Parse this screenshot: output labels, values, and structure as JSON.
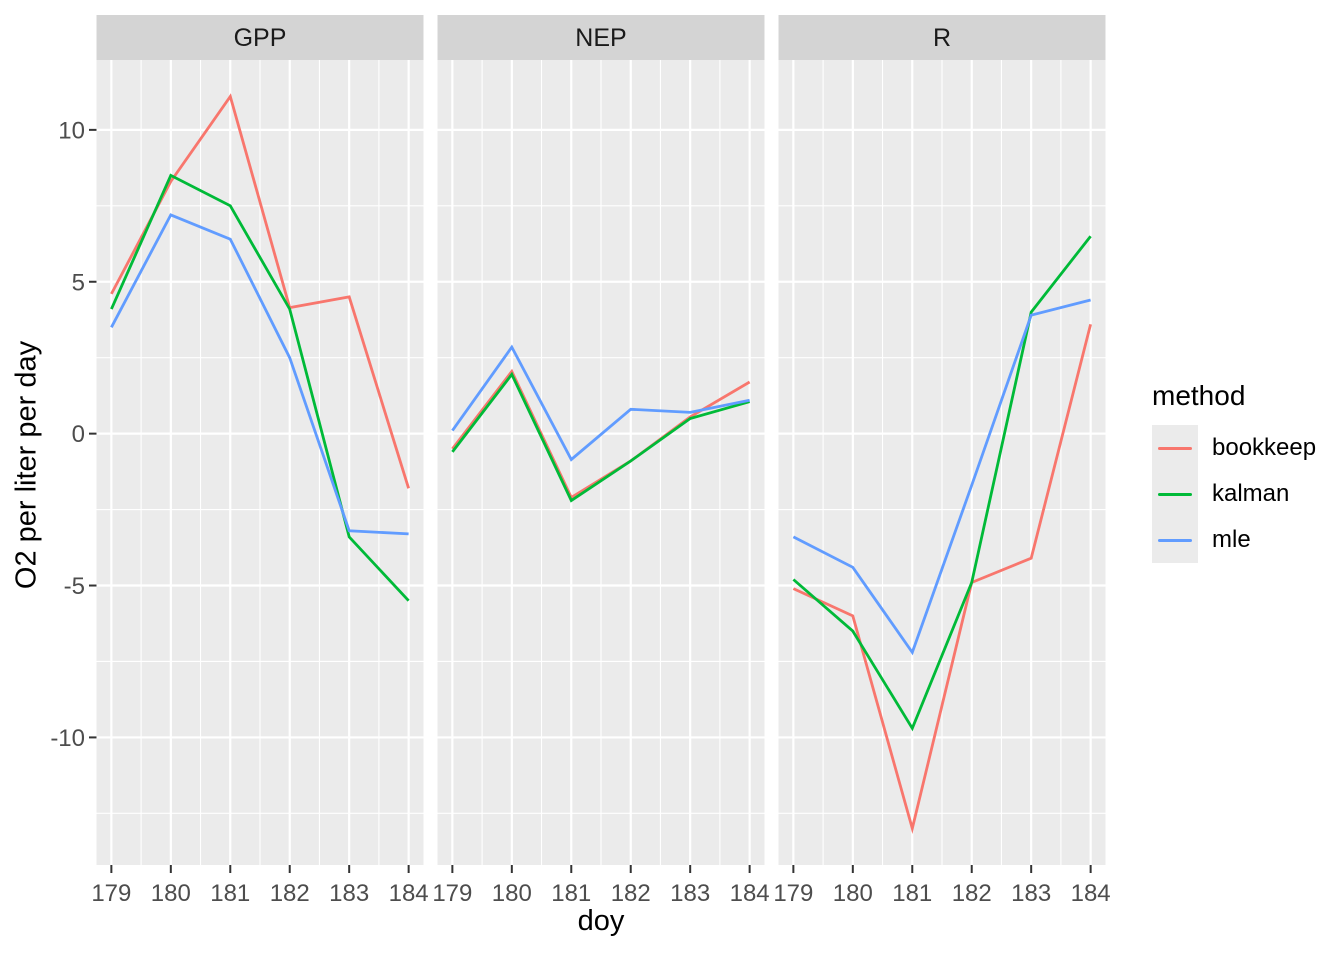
{
  "figure": {
    "x_axis_title": "doy",
    "y_axis_title": "O2 per liter per day",
    "y_ticks": [
      "10",
      "5",
      "0",
      "-5",
      "-10"
    ],
    "y_tick_values": [
      10,
      5,
      0,
      -5,
      -10
    ]
  },
  "legend": {
    "title": "method",
    "items": [
      {
        "label": "bookkeep",
        "color": "#F8766D"
      },
      {
        "label": "kalman",
        "color": "#00BA38"
      },
      {
        "label": "mle",
        "color": "#619CFF"
      }
    ]
  },
  "chart_data": {
    "type": "line",
    "x": [
      179,
      180,
      181,
      182,
      183,
      184
    ],
    "xlabel": "doy",
    "ylabel": "O2 per liter per day",
    "ylim": [
      -14.2,
      12.3
    ],
    "x_domain": [
      178.75,
      184.25
    ],
    "y_major_gridlines": [
      10,
      5,
      0,
      -5,
      -10
    ],
    "y_minor_gridlines": [
      7.5,
      2.5,
      -2.5,
      -7.5,
      -12.5
    ],
    "x_minor_gridlines": [
      179.5,
      180.5,
      181.5,
      182.5,
      183.5
    ],
    "grid": true,
    "legend_position": "right",
    "panel_background": "#EBEBEB",
    "strip_background": "#D4D4D4",
    "gridline_color": "#FFFFFF",
    "tick_color": "#333333",
    "tick_label_color": "#4D4D4D",
    "panels": [
      {
        "title": "GPP",
        "series": [
          {
            "name": "bookkeep",
            "color": "#F8766D",
            "values": [
              4.6,
              8.3,
              11.1,
              4.15,
              4.5,
              -1.8
            ]
          },
          {
            "name": "kalman",
            "color": "#00BA38",
            "values": [
              4.1,
              8.5,
              7.5,
              4.1,
              -3.4,
              -5.5
            ]
          },
          {
            "name": "mle",
            "color": "#619CFF",
            "values": [
              3.5,
              7.2,
              6.4,
              2.5,
              -3.2,
              -3.3
            ]
          }
        ]
      },
      {
        "title": "NEP",
        "series": [
          {
            "name": "bookkeep",
            "color": "#F8766D",
            "values": [
              -0.5,
              2.05,
              -2.1,
              -0.9,
              0.55,
              1.7
            ]
          },
          {
            "name": "kalman",
            "color": "#00BA38",
            "values": [
              -0.6,
              1.95,
              -2.2,
              -0.9,
              0.5,
              1.05
            ]
          },
          {
            "name": "mle",
            "color": "#619CFF",
            "values": [
              0.1,
              2.85,
              -0.85,
              0.8,
              0.7,
              1.1
            ]
          }
        ]
      },
      {
        "title": "R",
        "series": [
          {
            "name": "bookkeep",
            "color": "#F8766D",
            "values": [
              -5.1,
              -6.0,
              -13.0,
              -4.9,
              -4.1,
              3.6
            ]
          },
          {
            "name": "kalman",
            "color": "#00BA38",
            "values": [
              -4.8,
              -6.5,
              -9.7,
              -4.9,
              4.0,
              6.5
            ]
          },
          {
            "name": "mle",
            "color": "#619CFF",
            "values": [
              -3.4,
              -4.4,
              -7.2,
              -1.7,
              3.9,
              4.4
            ]
          }
        ]
      }
    ]
  }
}
